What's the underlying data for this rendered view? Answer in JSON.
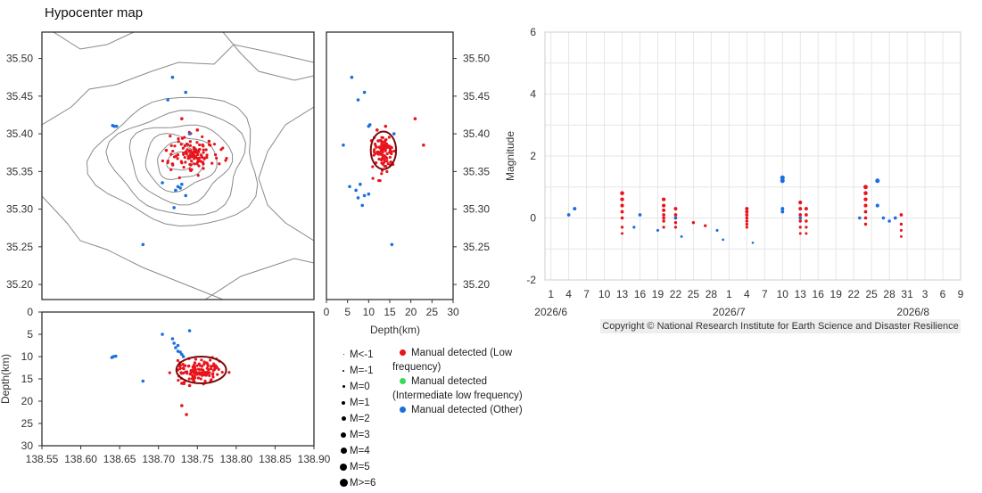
{
  "page_title": "Hypocenter map",
  "copyright": "Copyright © National Research Institute for Earth Science and Disaster Resilience",
  "colors": {
    "low_frequency": "#e8141c",
    "intermediate_low_frequency": "#33dd55",
    "other": "#1a6fe0",
    "ellipse": "#7a0a0a",
    "contour": "#8a8a8a"
  },
  "legend": {
    "magnitudes": [
      "M<-1",
      "M=-1",
      "M=0",
      "M=1",
      "M=2",
      "M=3",
      "M=4",
      "M=5",
      "M>=6"
    ],
    "types": [
      {
        "label": "Manual detected (Low frequency)",
        "color": "#e8141c"
      },
      {
        "label": "Manual detected (Intermediate low frequency)",
        "color": "#33dd55"
      },
      {
        "label": "Manual detected (Other)",
        "color": "#1a6fe0"
      }
    ]
  },
  "chart_data": [
    {
      "type": "scatter",
      "panel": "map",
      "xlim": [
        138.55,
        138.9
      ],
      "ylim": [
        35.18,
        35.535
      ],
      "y_ticks": [
        35.2,
        35.25,
        35.3,
        35.35,
        35.4,
        35.45,
        35.5
      ],
      "y_tick_labels": [
        "35.20",
        "35.25",
        "35.30",
        "35.35",
        "35.40",
        "35.45",
        "35.50"
      ],
      "low_frequency_cluster": {
        "center": [
          138.745,
          35.375
        ],
        "spread": [
          0.025,
          0.02
        ],
        "count": 120
      },
      "series": [
        {
          "name": "Manual detected (Low frequency)",
          "points": [
            [
              138.73,
              35.42
            ],
            [
              138.718,
              35.36
            ],
            [
              138.75,
              35.405
            ],
            [
              138.765,
              35.39
            ],
            [
              138.71,
              35.378
            ]
          ]
        },
        {
          "name": "Manual detected (Other)",
          "points": [
            [
              138.643,
              35.41
            ],
            [
              138.646,
              35.41
            ],
            [
              138.641,
              35.411
            ],
            [
              138.718,
              35.475
            ],
            [
              138.735,
              35.455
            ],
            [
              138.712,
              35.445
            ],
            [
              138.725,
              35.33
            ],
            [
              138.722,
              35.325
            ],
            [
              138.73,
              35.333
            ],
            [
              138.705,
              35.335
            ],
            [
              138.72,
              35.302
            ],
            [
              138.735,
              35.318
            ],
            [
              138.68,
              35.253
            ],
            [
              138.728,
              35.328
            ],
            [
              138.74,
              35.4
            ]
          ]
        }
      ]
    },
    {
      "type": "scatter",
      "panel": "depth-latitude",
      "xlabel": "Depth(km)",
      "xlim": [
        0,
        30
      ],
      "x_ticks": [
        0,
        5,
        10,
        15,
        20,
        25,
        30
      ],
      "ylim": [
        35.18,
        35.535
      ],
      "y_ticks": [
        35.2,
        35.25,
        35.3,
        35.35,
        35.4,
        35.45,
        35.5
      ],
      "y_tick_labels": [
        "35.20",
        "35.25",
        "35.30",
        "35.35",
        "35.40",
        "35.45",
        "35.50"
      ],
      "low_frequency_cluster": {
        "center": [
          13.5,
          35.375
        ],
        "spread": [
          2.2,
          0.02
        ],
        "count": 100
      },
      "ellipse": {
        "center": [
          13.5,
          35.378
        ],
        "radii": [
          3,
          0.025
        ]
      },
      "series": [
        {
          "name": "Manual detected (Low frequency)",
          "points": [
            [
              21.0,
              35.42
            ],
            [
              23.0,
              35.385
            ],
            [
              14.0,
              35.41
            ],
            [
              12.0,
              35.405
            ]
          ]
        },
        {
          "name": "Manual detected (Other)",
          "points": [
            [
              6.0,
              35.475
            ],
            [
              9.0,
              35.455
            ],
            [
              7.5,
              35.445
            ],
            [
              10.0,
              35.41
            ],
            [
              10.3,
              35.412
            ],
            [
              4.0,
              35.385
            ],
            [
              5.5,
              35.33
            ],
            [
              7.0,
              35.325
            ],
            [
              8.0,
              35.333
            ],
            [
              10.0,
              35.32
            ],
            [
              8.5,
              35.305
            ],
            [
              9.0,
              35.318
            ],
            [
              15.5,
              35.253
            ],
            [
              7.5,
              35.315
            ],
            [
              16.0,
              35.4
            ]
          ]
        }
      ]
    },
    {
      "type": "scatter",
      "panel": "longitude-depth",
      "ylabel": "Depth(km)",
      "xlim": [
        138.55,
        138.9
      ],
      "x_ticks": [
        138.55,
        138.6,
        138.65,
        138.7,
        138.75,
        138.8,
        138.85,
        138.9
      ],
      "x_tick_labels": [
        "138.55",
        "138.60",
        "138.65",
        "138.70",
        "138.75",
        "138.80",
        "138.85",
        "138.90"
      ],
      "ylim": [
        0,
        30
      ],
      "y_ticks": [
        0,
        5,
        10,
        15,
        20,
        25,
        30
      ],
      "low_frequency_cluster": {
        "center": [
          138.75,
          13.0
        ],
        "spread": [
          0.025,
          2.2
        ],
        "count": 120
      },
      "ellipse": {
        "center": [
          138.755,
          13.0
        ],
        "radii": [
          0.032,
          3
        ]
      },
      "series": [
        {
          "name": "Manual detected (Low frequency)",
          "points": [
            [
              138.73,
              21.0
            ],
            [
              138.736,
              23.0
            ],
            [
              138.73,
              16.0
            ],
            [
              138.74,
              16.5
            ]
          ]
        },
        {
          "name": "Manual detected (Other)",
          "points": [
            [
              138.642,
              10.0
            ],
            [
              138.645,
              9.9
            ],
            [
              138.64,
              10.2
            ],
            [
              138.718,
              6.0
            ],
            [
              138.72,
              7.0
            ],
            [
              138.725,
              7.5
            ],
            [
              138.722,
              8.0
            ],
            [
              138.728,
              9.0
            ],
            [
              138.73,
              9.5
            ],
            [
              138.705,
              5.0
            ],
            [
              138.74,
              4.2
            ],
            [
              138.68,
              15.5
            ],
            [
              138.732,
              10.0
            ],
            [
              138.725,
              8.8
            ]
          ]
        }
      ]
    },
    {
      "type": "scatter",
      "panel": "magnitude-time",
      "ylabel": "Magnitude",
      "ylim": [
        -2,
        6
      ],
      "y_ticks": [
        -2,
        0,
        2,
        4,
        6
      ],
      "xlim": [
        0,
        70
      ],
      "x_ticks": [
        1,
        4,
        7,
        10,
        13,
        16,
        19,
        22,
        25,
        28,
        31,
        34,
        37,
        40,
        43,
        46,
        49,
        52,
        55,
        58,
        61,
        64,
        67,
        70
      ],
      "x_tick_labels": [
        "1",
        "4",
        "7",
        "10",
        "13",
        "16",
        "19",
        "22",
        "25",
        "28",
        "1",
        "4",
        "7",
        "10",
        "13",
        "16",
        "19",
        "22",
        "25",
        "28",
        "31",
        "3",
        "6",
        "9"
      ],
      "month_labels": [
        {
          "x": 1,
          "label": "2026/6"
        },
        {
          "x": 31,
          "label": "2026/7"
        },
        {
          "x": 62,
          "label": "2026/8"
        }
      ],
      "series": [
        {
          "name": "Manual detected (Low frequency)",
          "points": [
            [
              13,
              0.8
            ],
            [
              13,
              0.6
            ],
            [
              13,
              0.4
            ],
            [
              13,
              0.2
            ],
            [
              13,
              0.0
            ],
            [
              13,
              -0.3
            ],
            [
              13,
              -0.5
            ],
            [
              20,
              0.6
            ],
            [
              20,
              0.4
            ],
            [
              20,
              0.25
            ],
            [
              20,
              0.1
            ],
            [
              20,
              0.0
            ],
            [
              20,
              -0.1
            ],
            [
              20,
              -0.3
            ],
            [
              22,
              0.3
            ],
            [
              22,
              0.1
            ],
            [
              22,
              0.0
            ],
            [
              22,
              -0.15
            ],
            [
              22,
              -0.3
            ],
            [
              25,
              -0.15
            ],
            [
              27,
              -0.25
            ],
            [
              34,
              0.3
            ],
            [
              34,
              0.2
            ],
            [
              34,
              0.1
            ],
            [
              34,
              0.0
            ],
            [
              34,
              -0.1
            ],
            [
              34,
              -0.2
            ],
            [
              34,
              -0.3
            ],
            [
              43,
              0.5
            ],
            [
              43,
              0.3
            ],
            [
              43,
              0.1
            ],
            [
              43,
              0.0
            ],
            [
              43,
              -0.1
            ],
            [
              43,
              -0.3
            ],
            [
              43,
              -0.5
            ],
            [
              44,
              0.3
            ],
            [
              44,
              0.1
            ],
            [
              44,
              -0.1
            ],
            [
              44,
              -0.3
            ],
            [
              44,
              -0.5
            ],
            [
              54,
              1.0
            ],
            [
              54,
              0.8
            ],
            [
              54,
              0.6
            ],
            [
              54,
              0.4
            ],
            [
              54,
              0.2
            ],
            [
              54,
              0.0
            ],
            [
              54,
              -0.2
            ],
            [
              59,
              0.0
            ],
            [
              60,
              -0.2
            ],
            [
              60,
              -0.4
            ],
            [
              60,
              -0.6
            ],
            [
              60,
              0.1
            ]
          ]
        },
        {
          "name": "Manual detected (Other)",
          "points": [
            [
              4,
              0.1
            ],
            [
              5,
              0.3
            ],
            [
              15,
              -0.3
            ],
            [
              16,
              0.1
            ],
            [
              19,
              -0.4
            ],
            [
              22,
              0.0
            ],
            [
              23,
              -0.6
            ],
            [
              29,
              -0.4
            ],
            [
              30,
              -0.7
            ],
            [
              35,
              -0.8
            ],
            [
              40,
              1.3
            ],
            [
              40,
              1.2
            ],
            [
              40,
              0.3
            ],
            [
              40,
              0.2
            ],
            [
              43,
              0.0
            ],
            [
              53,
              0.0
            ],
            [
              56,
              1.2
            ],
            [
              56,
              0.4
            ],
            [
              57,
              0.0
            ],
            [
              58,
              -0.1
            ],
            [
              59,
              0.0
            ]
          ]
        }
      ]
    }
  ]
}
